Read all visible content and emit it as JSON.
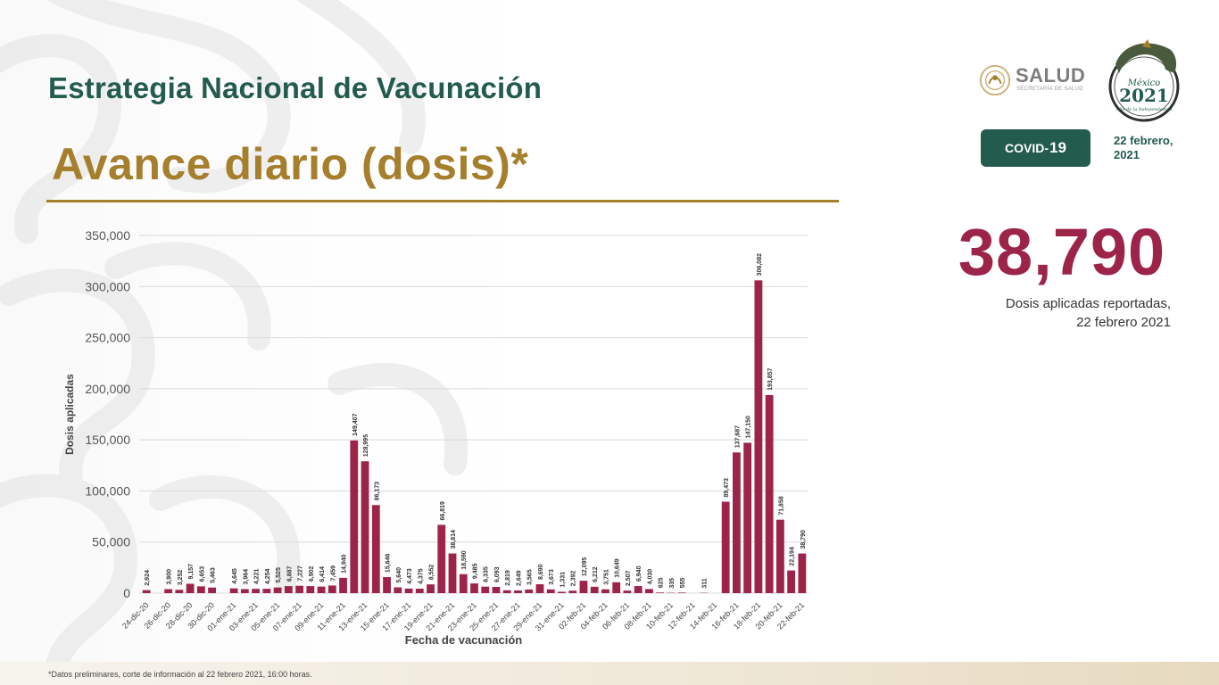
{
  "header": {
    "title": "Estrategia Nacional de Vacunación",
    "subtitle": "Avance diario (dosis)*"
  },
  "logos": {
    "salud_word": "SALUD",
    "salud_sub": "SECRETARÍA DE SALUD",
    "emblem_line1": "México",
    "emblem_line2": "2021",
    "emblem_line3": "Año de la Independencia"
  },
  "badge": {
    "prefix": "COVID-",
    "number": "19"
  },
  "date": {
    "line1": "22 febrero,",
    "line2": "2021"
  },
  "highlight": {
    "value": "38,790",
    "caption_line1": "Dosis aplicadas reportadas,",
    "caption_line2": "22 febrero 2021"
  },
  "footnote": "*Datos preliminares, corte de información al 22 febrero 2021, 16:00 horas.",
  "colors": {
    "green": "#235b4e",
    "gold": "#a57f2c",
    "bar": "#9d2449"
  },
  "chart_data": {
    "type": "bar",
    "xlabel": "Fecha de vacunación",
    "ylabel": "Dosis aplicadas",
    "ylim": [
      0,
      350000
    ],
    "yticks": [
      0,
      50000,
      100000,
      150000,
      200000,
      250000,
      300000,
      350000
    ],
    "ytick_labels": [
      "0",
      "50,000",
      "100,000",
      "150,000",
      "200,000",
      "250,000",
      "300,000",
      "350,000"
    ],
    "grid": true,
    "categories": [
      "24-dic-20",
      "25-dic-20",
      "26-dic-20",
      "27-dic-20",
      "28-dic-20",
      "29-dic-20",
      "30-dic-20",
      "31-dic-20",
      "01-ene-21",
      "02-ene-21",
      "03-ene-21",
      "04-ene-21",
      "05-ene-21",
      "06-ene-21",
      "07-ene-21",
      "08-ene-21",
      "09-ene-21",
      "10-ene-21",
      "11-ene-21",
      "12-ene-21",
      "13-ene-21",
      "14-ene-21",
      "15-ene-21",
      "16-ene-21",
      "17-ene-21",
      "18-ene-21",
      "19-ene-21",
      "20-ene-21",
      "21-ene-21",
      "22-ene-21",
      "23-ene-21",
      "24-ene-21",
      "25-ene-21",
      "26-ene-21",
      "27-ene-21",
      "28-ene-21",
      "29-ene-21",
      "30-ene-21",
      "31-ene-21",
      "01-feb-21",
      "02-feb-21",
      "03-feb-21",
      "04-feb-21",
      "05-feb-21",
      "06-feb-21",
      "07-feb-21",
      "08-feb-21",
      "09-feb-21",
      "10-feb-21",
      "11-feb-21",
      "12-feb-21",
      "13-feb-21",
      "14-feb-21",
      "15-feb-21",
      "16-feb-21",
      "17-feb-21",
      "18-feb-21",
      "19-feb-21",
      "20-feb-21",
      "21-feb-21",
      "22-feb-21"
    ],
    "visible_tick_labels": [
      "24-dic-20",
      "",
      "26-dic-20",
      "",
      "28-dic-20",
      "",
      "30-dic-20",
      "",
      "01-ene-21",
      "",
      "03-ene-21",
      "",
      "05-ene-21",
      "",
      "07-ene-21",
      "",
      "09-ene-21",
      "",
      "11-ene-21",
      "",
      "13-ene-21",
      "",
      "15-ene-21",
      "",
      "17-ene-21",
      "",
      "19-ene-21",
      "",
      "21-ene-21",
      "",
      "23-ene-21",
      "",
      "25-ene-21",
      "",
      "27-ene-21",
      "",
      "29-ene-21",
      "",
      "31-ene-21",
      "",
      "02-feb-21",
      "",
      "04-feb-21",
      "",
      "06-feb-21",
      "",
      "08-feb-21",
      "",
      "10-feb-21",
      "",
      "12-feb-21",
      "",
      "14-feb-21",
      "",
      "16-feb-21",
      "",
      "18-feb-21",
      "",
      "20-feb-21",
      "",
      "22-feb-21"
    ],
    "values": [
      2924,
      0,
      3900,
      3252,
      9157,
      6653,
      5463,
      0,
      4645,
      3964,
      4221,
      4254,
      5525,
      6887,
      7227,
      6902,
      6414,
      7459,
      14940,
      149407,
      128995,
      86173,
      15646,
      5640,
      4473,
      4375,
      8552,
      66819,
      38814,
      18590,
      9485,
      6335,
      6093,
      2819,
      2649,
      3565,
      8690,
      3673,
      1331,
      2392,
      12095,
      6212,
      3751,
      10649,
      2507,
      6940,
      4030,
      625,
      335,
      555,
      0,
      311,
      0,
      89473,
      137687,
      147150,
      306082,
      193857,
      71858,
      22194,
      38790
    ],
    "labels": [
      "2,924",
      "",
      "3,900",
      "3,252",
      "9,157",
      "6,653",
      "5,463",
      "",
      "4,645",
      "3,964",
      "4,221",
      "4,254",
      "5,525",
      "6,887",
      "7,227",
      "6,902",
      "6,414",
      "7,459",
      "14,940",
      "149,407",
      "128,995",
      "86,173",
      "15,646",
      "5,640",
      "4,473",
      "4,375",
      "8,552",
      "66,819",
      "38,814",
      "18,590",
      "9,485",
      "6,335",
      "6,093",
      "2,819",
      "2,649",
      "3,565",
      "8,690",
      "3,673",
      "1,331",
      "2,392",
      "12,095",
      "6,212",
      "3,751",
      "10,649",
      "2,507",
      "6,940",
      "4,030",
      "625",
      "335",
      "555",
      "",
      "311",
      "",
      "89,473",
      "137,687",
      "147,150",
      "306,082",
      "193,857",
      "71,858",
      "22,194",
      "38,790"
    ]
  }
}
